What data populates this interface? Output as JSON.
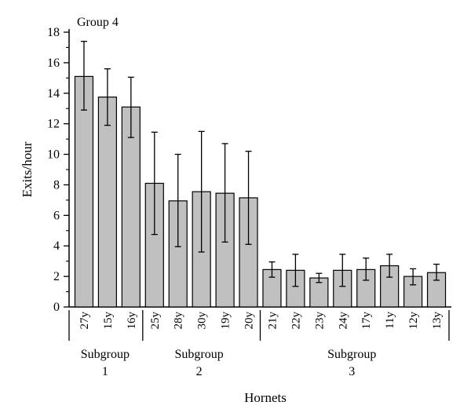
{
  "chart_data": {
    "type": "bar",
    "title": "Group 4",
    "xlabel": "Hornets",
    "ylabel": "Exits/hour",
    "ylim": [
      0,
      18
    ],
    "yticks": [
      0,
      2,
      4,
      6,
      8,
      10,
      12,
      14,
      16,
      18
    ],
    "categories": [
      "27y",
      "15y",
      "16y",
      "25y",
      "28y",
      "30y",
      "19y",
      "20y",
      "21y",
      "22y",
      "23y",
      "24y",
      "17y",
      "11y",
      "12y",
      "13y"
    ],
    "values": [
      15.1,
      13.75,
      13.1,
      8.1,
      6.95,
      7.55,
      7.45,
      7.15,
      2.45,
      2.4,
      1.9,
      2.4,
      2.45,
      2.7,
      2.0,
      2.25
    ],
    "error_upper": [
      17.4,
      15.6,
      15.05,
      11.45,
      10.0,
      11.5,
      10.7,
      10.2,
      2.95,
      3.45,
      2.2,
      3.45,
      3.2,
      3.45,
      2.5,
      2.8
    ],
    "error_lower": [
      12.9,
      11.9,
      11.1,
      4.75,
      3.95,
      3.6,
      4.25,
      4.1,
      1.95,
      1.35,
      1.6,
      1.35,
      1.75,
      1.95,
      1.45,
      1.75
    ],
    "groups": [
      {
        "label": "Subgroup",
        "number": "1",
        "start": 0,
        "end": 2
      },
      {
        "label": "Subgroup",
        "number": "2",
        "start": 3,
        "end": 7
      },
      {
        "label": "Subgroup",
        "number": "3",
        "start": 8,
        "end": 15
      }
    ],
    "bar_color": "#c0c0c0",
    "grid": false
  }
}
